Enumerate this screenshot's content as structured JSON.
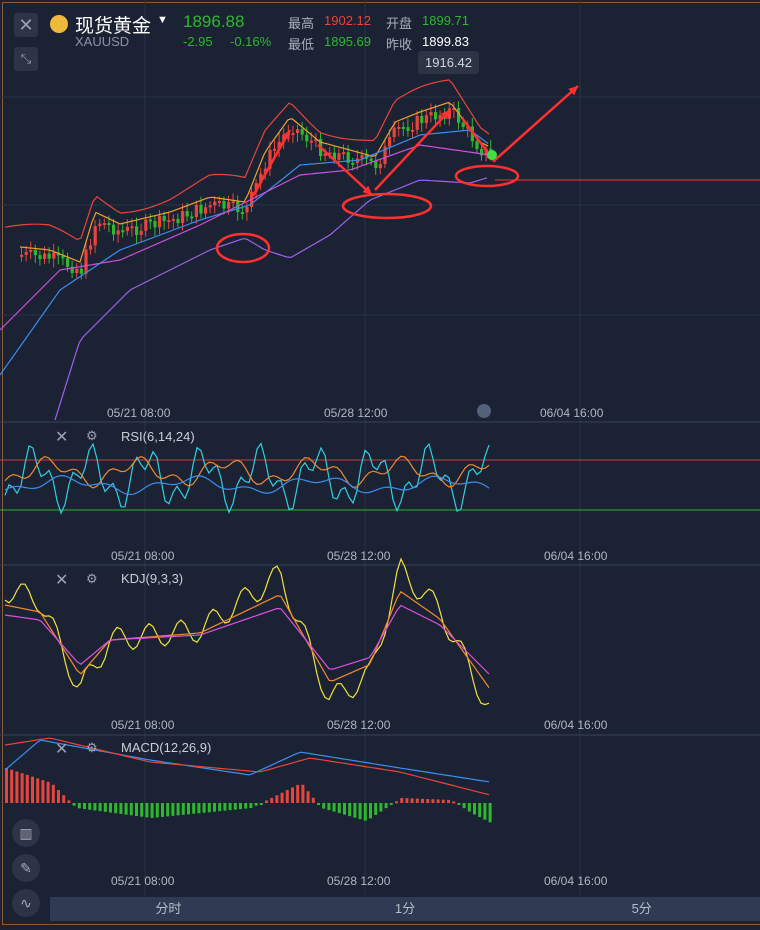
{
  "header": {
    "name": "现货黄金",
    "symbol": "XAUUSD",
    "price": "1896.88",
    "change": "-2.95",
    "change_pct": "-0.16%",
    "high_label": "最高",
    "high": "1902.12",
    "open_label": "开盘",
    "open": "1899.71",
    "low_label": "最低",
    "low": "1895.69",
    "prev_label": "昨收",
    "prev": "1899.83"
  },
  "main": {
    "max_label": "1916.42",
    "x_ticks": [
      "05/21 08:00",
      "05/28 12:00",
      "06/04 16:00"
    ]
  },
  "rsi": {
    "label": "RSI(6,14,24)"
  },
  "kdj": {
    "label": "KDJ(9,3,3)"
  },
  "macd": {
    "label": "MACD(12,26,9)"
  },
  "tabs": [
    "分时",
    "1分",
    "5分"
  ],
  "colors": {
    "up": "#e8453c",
    "down": "#2eb82e",
    "bg": "#1b2233",
    "annotation": "#ff3030"
  }
}
